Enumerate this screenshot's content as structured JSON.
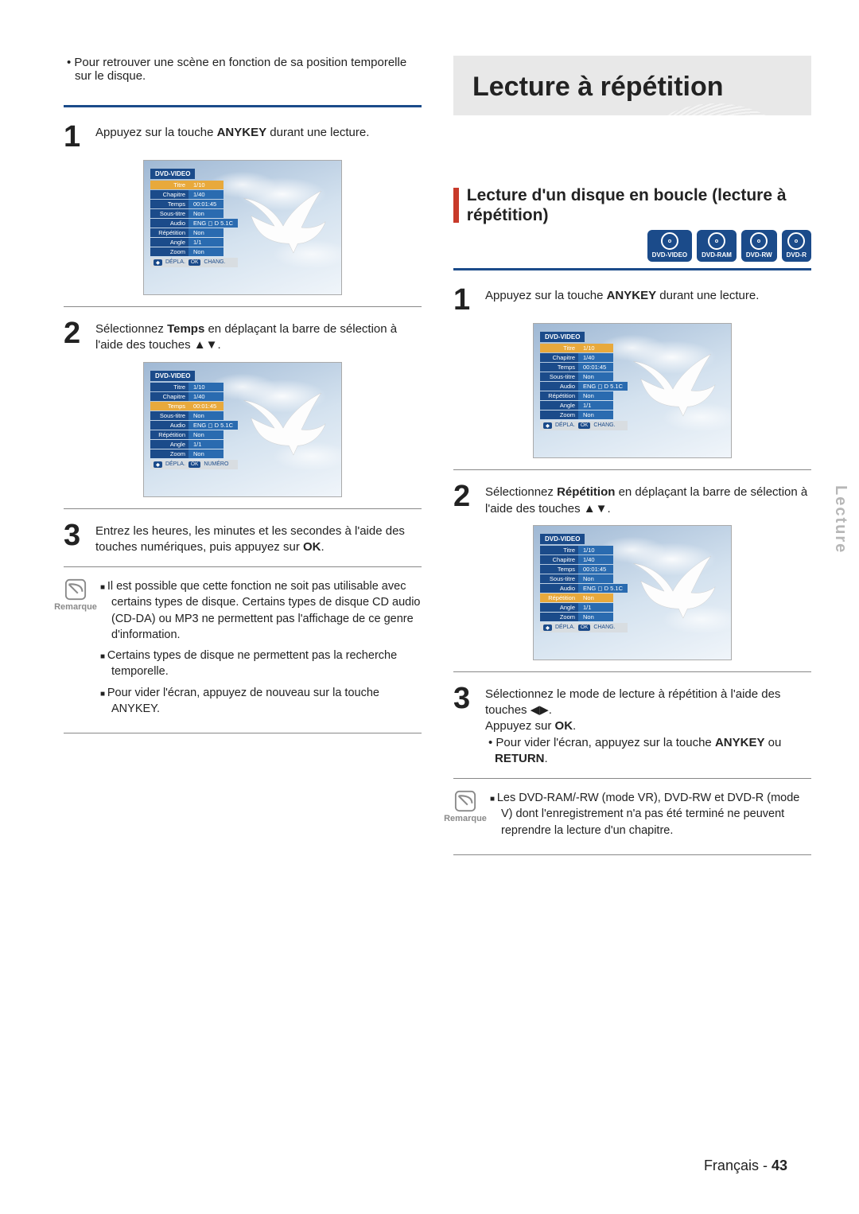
{
  "colors": {
    "accent_blue": "#1b4b8a",
    "accent_red": "#c83a2a",
    "banner_bg": "#e8e8e8",
    "highlight_orange": "#e8a93c",
    "text": "#222222",
    "muted": "#8a8a8a"
  },
  "left": {
    "intro": "Pour retrouver une scène en fonction de sa position temporelle sur le disque.",
    "step1": {
      "num": "1",
      "text_a": "Appuyez sur la touche ",
      "bold": "ANYKEY",
      "text_b": " durant une lecture."
    },
    "step2": {
      "num": "2",
      "text_a": "Sélectionnez ",
      "bold": "Temps",
      "text_b": " en déplaçant la barre de sélection à l'aide des touches ▲▼."
    },
    "step3": {
      "num": "3",
      "text_a": "Entrez les heures, les minutes et les secondes à l'aide des touches numériques, puis appuyez sur ",
      "bold": "OK",
      "text_b": "."
    },
    "remark": {
      "label": "Remarque",
      "items": [
        "Il est possible que cette fonction ne soit pas utilisable avec certains types de disque. Certains types de disque CD audio (CD-DA) ou MP3 ne permettent pas l'affichage de ce genre d'information.",
        "Certains types de disque ne permettent pas la recherche temporelle."
      ],
      "sub_a": "Pour vider l'écran, appuyez de nouveau sur la touche ",
      "sub_bold": "ANYKEY",
      "sub_b": "."
    },
    "osd_footer1": {
      "a": "DÉPLA.",
      "b": "CHANG."
    },
    "osd_footer2": {
      "a": "DÉPLA.",
      "b": "NUMÉRO"
    }
  },
  "right": {
    "banner": "Lecture à répétition",
    "section_title": "Lecture d'un disque en boucle (lecture à répétition)",
    "badges": [
      "DVD-VIDEO",
      "DVD-RAM",
      "DVD-RW",
      "DVD-R"
    ],
    "step1": {
      "num": "1",
      "text_a": "Appuyez sur la touche ",
      "bold": "ANYKEY",
      "text_b": " durant une lecture."
    },
    "step2": {
      "num": "2",
      "text_a": "Sélectionnez ",
      "bold": "Répétition",
      "text_b": " en déplaçant la barre de sélection à l'aide des touches ▲▼."
    },
    "step3": {
      "num": "3",
      "text_a": "Sélectionnez le mode de lecture à répétition à l'aide des touches ◀▶.",
      "line2_a": "Appuyez sur ",
      "line2_bold": "OK",
      "line2_b": ".",
      "bullet_a": "Pour vider l'écran, appuyez sur la touche ",
      "bullet_bold1": "ANYKEY",
      "bullet_mid": " ou ",
      "bullet_bold2": "RETURN",
      "bullet_b": "."
    },
    "remark": {
      "label": "Remarque",
      "item": "Les DVD-RAM/-RW (mode VR), DVD-RW et DVD-R (mode V) dont l'enregistrement n'a pas été terminé ne peuvent reprendre la lecture d'un chapitre."
    },
    "osd_footer": {
      "a": "DÉPLA.",
      "b": "CHANG."
    }
  },
  "osd_panel": {
    "title": "DVD-VIDEO",
    "rows": [
      {
        "label": "Titre",
        "value": "1/10"
      },
      {
        "label": "Chapitre",
        "value": "1/40"
      },
      {
        "label": "Temps",
        "value": "00:01:45"
      },
      {
        "label": "Sous-titre",
        "value": "Non"
      },
      {
        "label": "Audio",
        "value": "ENG ◻ D 5.1C"
      },
      {
        "label": "Répétition",
        "value": "Non"
      },
      {
        "label": "Angle",
        "value": "1/1"
      },
      {
        "label": "Zoom",
        "value": "Non"
      }
    ]
  },
  "side_tab": "Lecture",
  "footer": {
    "lang": "Français - ",
    "page": "43"
  }
}
